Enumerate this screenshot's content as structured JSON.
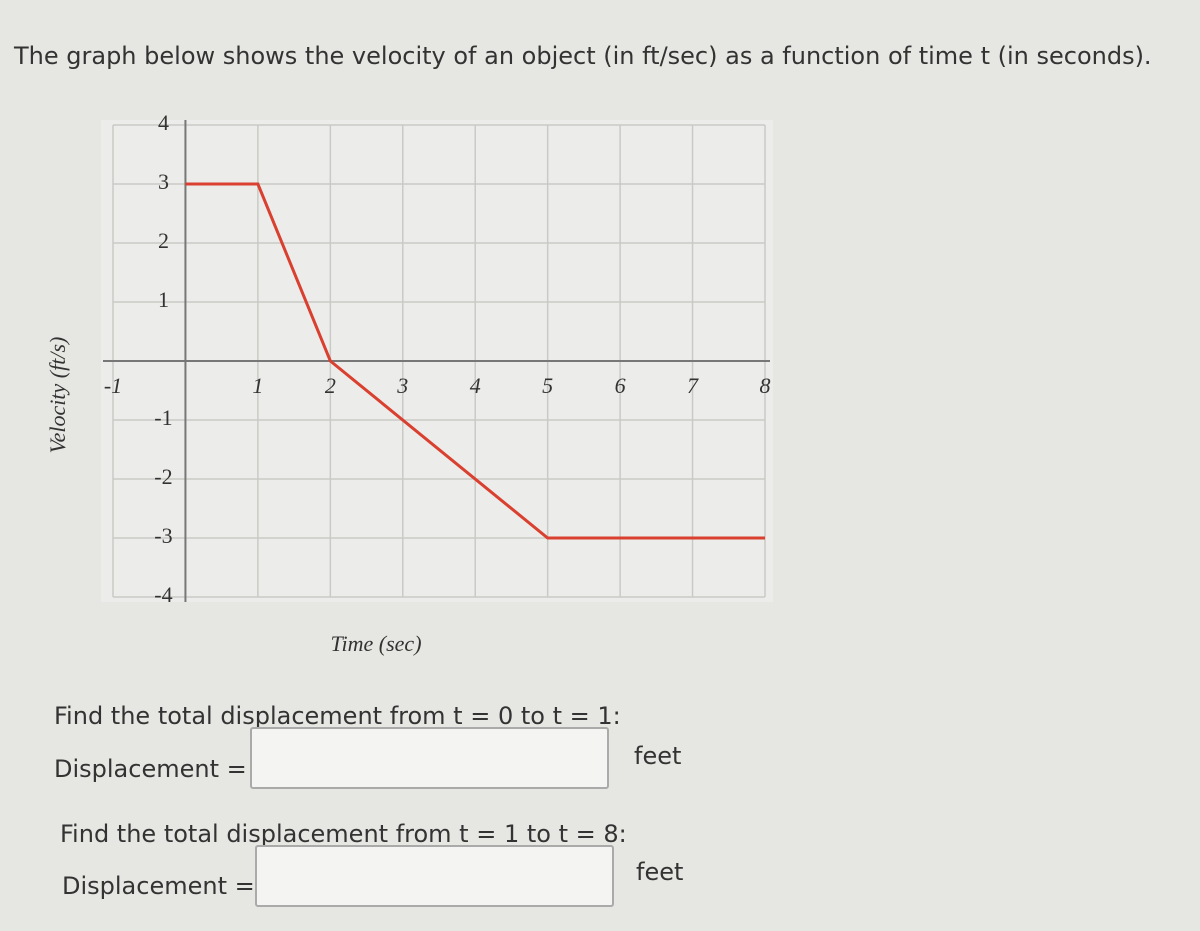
{
  "header": {
    "title": "The graph below shows the velocity of an object (in ft/sec) as a function of time t (in seconds)."
  },
  "chart_data": {
    "type": "line",
    "x_label": "Time (sec)",
    "y_label": "Velocity (ft/s)",
    "x": [
      0,
      1,
      2,
      5,
      8
    ],
    "values": [
      3,
      3,
      0,
      -3,
      -3
    ],
    "color": "#d9402f",
    "xlim": [
      -1,
      8
    ],
    "ylim": [
      -4,
      4
    ],
    "xticks": [
      -1,
      1,
      2,
      3,
      4,
      5,
      6,
      7,
      8
    ],
    "yticks": [
      -4,
      -3,
      -2,
      -1,
      1,
      2,
      3,
      4
    ],
    "grid": true
  },
  "questions": [
    {
      "prompt": "Find the total displacement from t = 0 to t = 1:",
      "label": "Displacement =",
      "unit": "feet"
    },
    {
      "prompt": "Find the total displacement from t = 1 to t = 8:",
      "label": "Displacement =",
      "unit": "feet"
    }
  ]
}
